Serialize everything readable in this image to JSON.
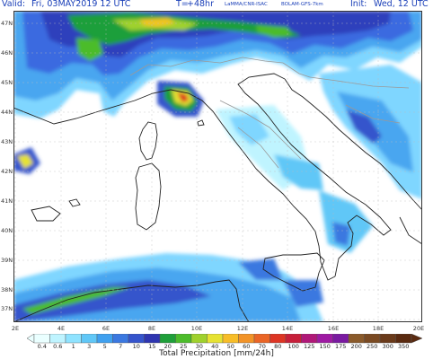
{
  "header": {
    "valid_label": "Valid:",
    "valid_value": "Fri, 03MAY2019  12 UTC",
    "lead_label": "T=",
    "lead_value": "+48hr",
    "model_credit": "LaMMA/CNR-ISAC",
    "model_name": "BOLAM-GFS-7km",
    "init_label": "Init:",
    "init_value": "Wed, 12 UTC",
    "text_color": "#1a3fb8"
  },
  "map": {
    "region": "Italy and western Mediterranean",
    "sea_color": "#ffffff",
    "coastline_color": "#222222",
    "border_color": "#9a9a9a",
    "lon_labels": [
      "2E",
      "4E",
      "6E",
      "8E",
      "10E",
      "12E",
      "14E",
      "16E",
      "18E",
      "20E"
    ],
    "lat_labels": [
      "47N",
      "46N",
      "45N",
      "44N",
      "43N",
      "42N",
      "41N",
      "40N",
      "39N",
      "38N",
      "37N"
    ]
  },
  "colorbar": {
    "title": "Total Precipitation [mm/24h]",
    "ticks": [
      "0.4",
      "0.6",
      "1",
      "3",
      "5",
      "7",
      "10",
      "15",
      "20",
      "25",
      "30",
      "40",
      "50",
      "60",
      "70",
      "80",
      "100",
      "125",
      "150",
      "175",
      "200",
      "250",
      "300",
      "350"
    ],
    "colors": [
      "#eaffff",
      "#bff4ff",
      "#8fe3ff",
      "#60c7f7",
      "#3fa0ef",
      "#3b78e0",
      "#3554cc",
      "#2e35b0",
      "#1f9f3a",
      "#4cbc2b",
      "#9fd12d",
      "#e6e232",
      "#f7bd28",
      "#f29327",
      "#ea6526",
      "#dd3524",
      "#c71f3a",
      "#b01878",
      "#9e1aa3",
      "#7a1aa0",
      "#8a5a2a",
      "#7a4a22",
      "#6a3a1a",
      "#5a2a10"
    ]
  }
}
